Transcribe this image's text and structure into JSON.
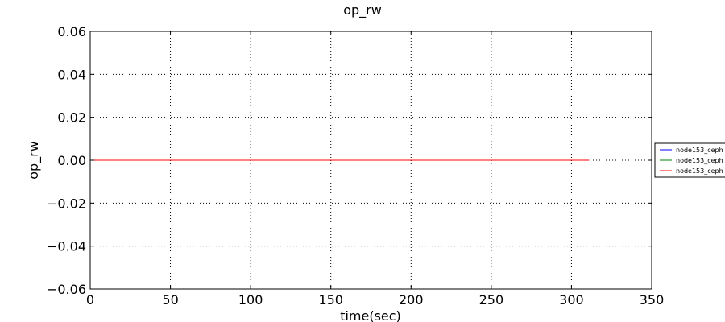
{
  "chart_data": {
    "type": "line",
    "title": "op_rw",
    "xlabel": "time(sec)",
    "ylabel": "op_rw",
    "xlim": [
      0,
      350
    ],
    "ylim": [
      -0.06,
      0.06
    ],
    "xticks": [
      0,
      50,
      100,
      150,
      200,
      250,
      300,
      350
    ],
    "yticks": [
      -0.06,
      -0.04,
      -0.02,
      0.0,
      0.02,
      0.04,
      0.06
    ],
    "xtick_labels": [
      "0",
      "50",
      "100",
      "150",
      "200",
      "250",
      "300",
      "350"
    ],
    "ytick_labels": [
      "−0.06",
      "−0.04",
      "−0.02",
      "0.00",
      "0.02",
      "0.04",
      "0.06"
    ],
    "grid": true,
    "legend_position": "right",
    "series": [
      {
        "name": "node153_ceph",
        "color": "#0000ff",
        "x": [
          0,
          311
        ],
        "y": [
          0,
          0
        ]
      },
      {
        "name": "node153_ceph",
        "color": "#008000",
        "x": [
          0,
          311
        ],
        "y": [
          0,
          0
        ]
      },
      {
        "name": "node153_ceph",
        "color": "#ff0000",
        "x": [
          0,
          311
        ],
        "y": [
          0,
          0
        ]
      }
    ]
  }
}
